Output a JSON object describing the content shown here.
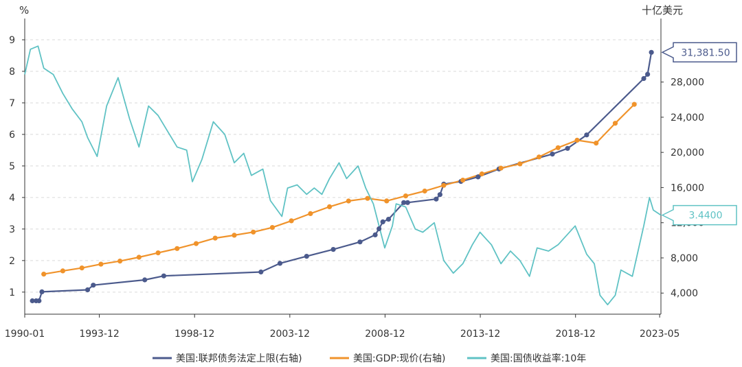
{
  "chart_data": {
    "type": "line",
    "left_axis": {
      "unit": "%",
      "ticks": [
        "1",
        "2",
        "3",
        "4",
        "5",
        "6",
        "7",
        "8",
        "9"
      ],
      "range": [
        0.3,
        9.5
      ]
    },
    "right_axis": {
      "unit": "十亿美元",
      "ticks": [
        "4,000",
        "8,000",
        "12,000",
        "16,000",
        "20,000",
        "24,000",
        "28,000"
      ],
      "range": [
        1600,
        34600
      ]
    },
    "x_axis": {
      "ticks": [
        "1990-01",
        "1993-12",
        "1998-12",
        "2003-12",
        "2008-12",
        "2013-12",
        "2018-12",
        "2023-05"
      ],
      "range": [
        1990.0,
        2023.4
      ]
    },
    "grid": true,
    "legend_position": "bottom",
    "series": [
      {
        "name": "美国:联邦债务法定上限(右轴)",
        "axis": "right",
        "color": "#4b5a8c",
        "markers": true,
        "x": [
          1990.4,
          1990.6,
          1990.75,
          1990.9,
          1993.3,
          1993.6,
          1996.3,
          1997.3,
          2002.4,
          2003.4,
          2004.8,
          2006.2,
          2007.6,
          2008.4,
          2008.6,
          2008.8,
          2009.1,
          2009.9,
          2010.1,
          2011.6,
          2011.8,
          2012.0,
          2012.9,
          2013.8,
          2014.9,
          2017.7,
          2018.5,
          2019.5,
          2022.5,
          2022.7,
          2022.9
        ],
        "y": [
          3123,
          3123,
          3123,
          4145,
          4370,
          4900,
          5500,
          5950,
          6400,
          7384,
          8184,
          8965,
          9815,
          10615,
          11315,
          12104,
          12394,
          14294,
          14294,
          14694,
          15194,
          16394,
          16699,
          17212,
          18113,
          19808,
          20456,
          21988,
          28401,
          28881,
          31381.5
        ]
      },
      {
        "name": "美国:GDP:现价(右轴)",
        "axis": "right",
        "color": "#f0932b",
        "markers": true,
        "x": [
          1991.0,
          1992.0,
          1993.0,
          1994.0,
          1995.0,
          1996.0,
          1997.0,
          1998.0,
          1999.0,
          2000.0,
          2001.0,
          2002.0,
          2003.0,
          2004.0,
          2005.0,
          2006.0,
          2007.0,
          2008.0,
          2009.0,
          2010.0,
          2011.0,
          2012.0,
          2013.0,
          2014.0,
          2015.0,
          2016.0,
          2017.0,
          2018.0,
          2019.0,
          2020.0,
          2021.0,
          2022.0
        ],
        "y": [
          6158,
          6520,
          6859,
          7287,
          7640,
          8073,
          8578,
          9063,
          9631,
          10251,
          10582,
          10936,
          11458,
          12214,
          13037,
          13816,
          14474,
          14769,
          14478,
          15049,
          15600,
          16254,
          16843,
          17551,
          18206,
          18695,
          19477,
          20533,
          21381,
          21060,
          23315,
          25463
        ]
      },
      {
        "name": "美国:国债收益率:10年",
        "axis": "left",
        "color": "#5fc2c4",
        "markers": false,
        "x": [
          1990.0,
          1990.3,
          1990.7,
          1991.0,
          1991.5,
          1992.0,
          1992.5,
          1993.0,
          1993.3,
          1993.8,
          1994.3,
          1994.9,
          1995.5,
          1996.0,
          1996.5,
          1997.0,
          1997.5,
          1998.0,
          1998.5,
          1998.8,
          1999.3,
          1999.9,
          2000.5,
          2001.0,
          2001.5,
          2001.9,
          2002.5,
          2002.9,
          2003.5,
          2003.8,
          2004.3,
          2004.8,
          2005.2,
          2005.6,
          2006.0,
          2006.5,
          2006.9,
          2007.5,
          2007.9,
          2008.3,
          2008.9,
          2009.3,
          2009.5,
          2010.0,
          2010.5,
          2010.9,
          2011.5,
          2012.0,
          2012.5,
          2013.0,
          2013.5,
          2013.9,
          2014.5,
          2015.0,
          2015.5,
          2016.0,
          2016.5,
          2016.9,
          2017.5,
          2018.0,
          2018.9,
          2019.5,
          2019.9,
          2020.2,
          2020.6,
          2021.0,
          2021.3,
          2021.9,
          2022.2,
          2022.5,
          2022.8,
          2023.0,
          2023.4
        ],
        "y": [
          7.9,
          8.7,
          8.8,
          8.1,
          7.9,
          7.3,
          6.8,
          6.4,
          5.9,
          5.3,
          6.9,
          7.8,
          6.5,
          5.6,
          6.9,
          6.6,
          6.1,
          5.6,
          5.5,
          4.5,
          5.2,
          6.4,
          6.0,
          5.1,
          5.4,
          4.7,
          4.9,
          3.9,
          3.4,
          4.3,
          4.4,
          4.1,
          4.3,
          4.1,
          4.6,
          5.1,
          4.6,
          5.0,
          4.3,
          3.8,
          2.4,
          3.1,
          3.8,
          3.7,
          3.0,
          2.9,
          3.2,
          2.0,
          1.6,
          1.9,
          2.5,
          2.9,
          2.5,
          1.9,
          2.3,
          2.0,
          1.5,
          2.4,
          2.3,
          2.5,
          3.1,
          2.2,
          1.9,
          0.9,
          0.6,
          0.9,
          1.7,
          1.5,
          2.3,
          3.1,
          4.0,
          3.6,
          3.44
        ]
      }
    ],
    "annotations": [
      {
        "text": "31,381.50",
        "series": 0,
        "axis": "right",
        "y": 31381.5
      },
      {
        "text": "3.4400",
        "series": 2,
        "axis": "left",
        "y": 3.44
      }
    ]
  }
}
